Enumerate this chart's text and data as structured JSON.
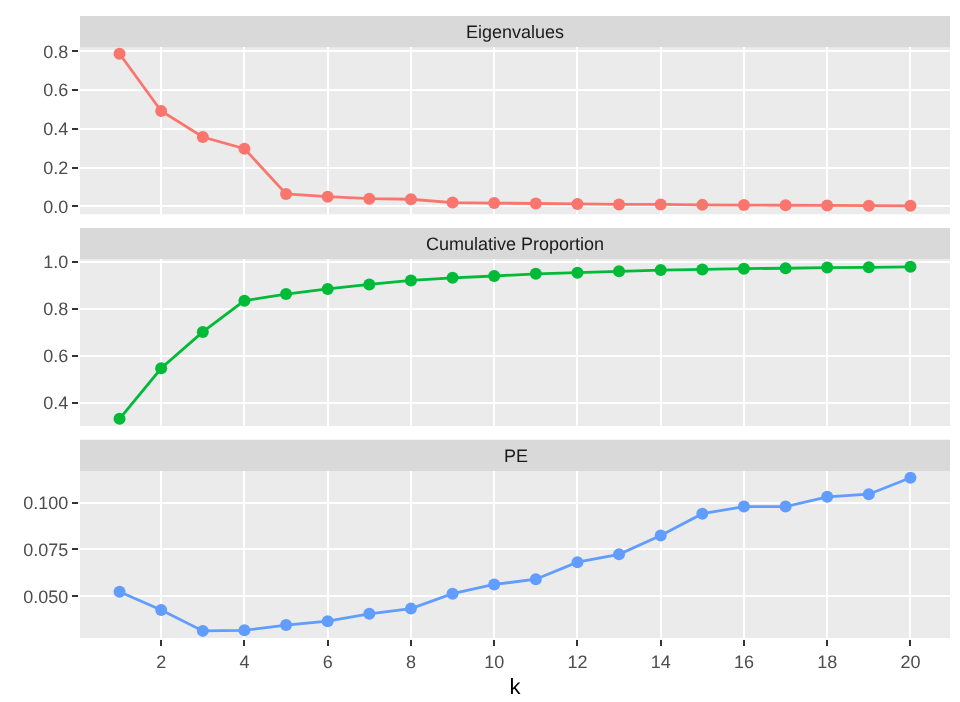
{
  "chart_data": [
    {
      "type": "line",
      "title": "Eigenvalues",
      "x": [
        1,
        2,
        3,
        4,
        5,
        6,
        7,
        8,
        9,
        10,
        11,
        12,
        13,
        14,
        15,
        16,
        17,
        18,
        19,
        20
      ],
      "xlim": [
        0.05,
        20.95
      ],
      "xticks": [
        2,
        4,
        6,
        8,
        10,
        12,
        14,
        16,
        18,
        20
      ],
      "ylim": [
        -0.04,
        0.82
      ],
      "yticks": [
        {
          "value": 0,
          "label": "0.0"
        },
        0.2,
        0.4,
        0.6,
        0.8
      ],
      "tick_labels": "y",
      "grid": true,
      "marker": "circle",
      "series": [
        {
          "color": "#f8766d",
          "values": [
            0.787,
            0.492,
            0.358,
            0.298,
            0.064,
            0.05,
            0.04,
            0.037,
            0.02,
            0.017,
            0.015,
            0.013,
            0.01,
            0.01,
            0.008,
            0.007,
            0.006,
            0.005,
            0.004,
            0.003
          ]
        }
      ]
    },
    {
      "type": "line",
      "title": "Cumulative Proportion",
      "x": [
        1,
        2,
        3,
        4,
        5,
        6,
        7,
        8,
        9,
        10,
        11,
        12,
        13,
        14,
        15,
        16,
        17,
        18,
        19,
        20
      ],
      "xlim": [
        0.05,
        20.95
      ],
      "xticks": [
        2,
        4,
        6,
        8,
        10,
        12,
        14,
        16,
        18,
        20
      ],
      "ylim": [
        0.3,
        1.01
      ],
      "yticks": [
        0.4,
        0.6,
        0.8,
        {
          "value": 1,
          "label": "1.0"
        }
      ],
      "tick_labels": "y",
      "grid": true,
      "marker": "circle",
      "series": [
        {
          "color": "#00ba38",
          "values": [
            0.331,
            0.546,
            0.701,
            0.834,
            0.862,
            0.884,
            0.903,
            0.92,
            0.931,
            0.939,
            0.948,
            0.953,
            0.959,
            0.964,
            0.967,
            0.97,
            0.972,
            0.975,
            0.976,
            0.978
          ]
        }
      ]
    },
    {
      "type": "line",
      "title": "PE",
      "xlabel": "k",
      "x": [
        1,
        2,
        3,
        4,
        5,
        6,
        7,
        8,
        9,
        10,
        11,
        12,
        13,
        14,
        15,
        16,
        17,
        18,
        19,
        20
      ],
      "xlim": [
        0.05,
        20.95
      ],
      "xticks": [
        2,
        4,
        6,
        8,
        10,
        12,
        14,
        16,
        18,
        20
      ],
      "ylim": [
        0.0277,
        0.1168
      ],
      "yticks": [
        {
          "value": 0.05,
          "label": "0.050"
        },
        0.075,
        {
          "value": 0.1,
          "label": "0.100"
        }
      ],
      "grid": true,
      "marker": "circle",
      "series": [
        {
          "color": "#619cff",
          "values": [
            0.0524,
            0.0427,
            0.0315,
            0.0318,
            0.0346,
            0.0367,
            0.0406,
            0.0434,
            0.0514,
            0.0563,
            0.0591,
            0.0682,
            0.0724,
            0.0825,
            0.0941,
            0.0979,
            0.0979,
            0.1031,
            0.1045,
            0.1133
          ]
        }
      ]
    }
  ]
}
